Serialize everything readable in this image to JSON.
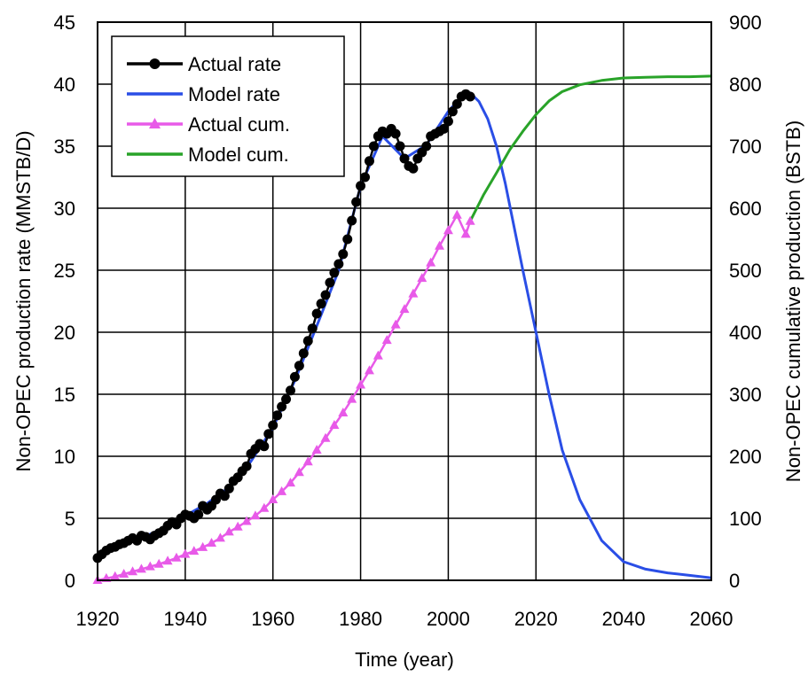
{
  "chart_data": {
    "type": "line",
    "xlabel": "Time (year)",
    "ylabel": "Non-OPEC production rate (MMSTB/D)",
    "y2label": "Non-OPEC cumulative production (BSTB)",
    "xlim": [
      1920,
      2060
    ],
    "ylim": [
      0,
      45
    ],
    "y2lim": [
      0,
      900
    ],
    "xticks": [
      "1920",
      "1940",
      "1960",
      "1980",
      "2000",
      "2020",
      "2040",
      "2060"
    ],
    "yticks": [
      "0",
      "5",
      "10",
      "15",
      "20",
      "25",
      "30",
      "35",
      "40",
      "45"
    ],
    "y2ticks": [
      "0",
      "100",
      "200",
      "300",
      "400",
      "500",
      "600",
      "700",
      "800",
      "900"
    ],
    "grid": true,
    "legend_position": "top-left",
    "legend": [
      "Actual rate",
      "Model rate",
      "Actual cum.",
      "Model cum."
    ],
    "colors": {
      "actual_rate": "#000000",
      "model_rate": "#2a4ee6",
      "actual_cum": "#e85ae8",
      "model_cum": "#29a329"
    },
    "series": [
      {
        "name": "Actual rate",
        "axis": "left",
        "marker": "circle",
        "x": [
          1920,
          1921,
          1922,
          1923,
          1924,
          1925,
          1926,
          1927,
          1928,
          1929,
          1930,
          1931,
          1932,
          1933,
          1934,
          1935,
          1936,
          1937,
          1938,
          1939,
          1940,
          1941,
          1942,
          1943,
          1944,
          1945,
          1946,
          1947,
          1948,
          1949,
          1950,
          1951,
          1952,
          1953,
          1954,
          1955,
          1956,
          1957,
          1958,
          1959,
          1960,
          1961,
          1962,
          1963,
          1964,
          1965,
          1966,
          1967,
          1968,
          1969,
          1970,
          1971,
          1972,
          1973,
          1974,
          1975,
          1976,
          1977,
          1978,
          1979,
          1980,
          1981,
          1982,
          1983,
          1984,
          1985,
          1986,
          1987,
          1988,
          1989,
          1990,
          1991,
          1992,
          1993,
          1994,
          1995,
          1996,
          1997,
          1998,
          1999,
          2000,
          2001,
          2002,
          2003,
          2004,
          2005
        ],
        "y": [
          1.8,
          2.1,
          2.4,
          2.6,
          2.7,
          2.9,
          3.0,
          3.2,
          3.4,
          3.2,
          3.6,
          3.5,
          3.3,
          3.6,
          3.8,
          4.0,
          4.4,
          4.7,
          4.5,
          5.0,
          5.3,
          5.2,
          5.0,
          5.3,
          6.0,
          5.7,
          6.0,
          6.5,
          7.0,
          6.8,
          7.4,
          8.0,
          8.3,
          8.8,
          9.2,
          10.2,
          10.6,
          11.0,
          10.8,
          11.8,
          12.5,
          13.3,
          14.0,
          14.6,
          15.3,
          16.4,
          17.3,
          18.3,
          19.3,
          20.3,
          21.5,
          22.3,
          23.0,
          24.0,
          24.8,
          25.5,
          26.3,
          27.5,
          29.0,
          30.5,
          31.8,
          32.5,
          33.8,
          35.0,
          35.8,
          36.2,
          36.0,
          36.4,
          36.0,
          35.0,
          34.0,
          33.4,
          33.2,
          34.0,
          34.5,
          35.0,
          35.8,
          36.0,
          36.2,
          36.4,
          37.0,
          37.8,
          38.4,
          39.0,
          39.2,
          39.0
        ]
      },
      {
        "name": "Model rate",
        "axis": "left",
        "x": [
          1920,
          1925,
          1930,
          1935,
          1940,
          1945,
          1950,
          1955,
          1960,
          1965,
          1970,
          1975,
          1980,
          1985,
          1990,
          1995,
          2000,
          2003,
          2005,
          2007,
          2009,
          2011,
          2013,
          2015,
          2017,
          2020,
          2023,
          2026,
          2030,
          2035,
          2040,
          2045,
          2050,
          2055,
          2060
        ],
        "y": [
          1.8,
          2.7,
          3.4,
          4.2,
          5.2,
          6.2,
          7.5,
          9.6,
          12.3,
          16.1,
          20.5,
          25.0,
          31.8,
          35.8,
          34.0,
          35.1,
          37.8,
          39.0,
          39.3,
          38.6,
          37.2,
          35.0,
          32.0,
          28.5,
          25.0,
          20.0,
          15.0,
          10.5,
          6.5,
          3.2,
          1.5,
          0.9,
          0.6,
          0.4,
          0.2
        ]
      },
      {
        "name": "Actual cum.",
        "axis": "right",
        "marker": "triangle",
        "x": [
          1920,
          1922,
          1924,
          1926,
          1928,
          1930,
          1932,
          1934,
          1936,
          1938,
          1940,
          1942,
          1944,
          1946,
          1948,
          1950,
          1952,
          1954,
          1956,
          1958,
          1960,
          1962,
          1964,
          1966,
          1968,
          1970,
          1972,
          1974,
          1976,
          1978,
          1980,
          1982,
          1984,
          1986,
          1988,
          1990,
          1992,
          1994,
          1996,
          1998,
          2000,
          2002,
          2004,
          2005
        ],
        "y": [
          0,
          3,
          6,
          10,
          14,
          18,
          22,
          26,
          31,
          36,
          42,
          47,
          53,
          60,
          68,
          78,
          86,
          95,
          104,
          116,
          130,
          143,
          157,
          174,
          191,
          210,
          229,
          250,
          270,
          292,
          315,
          338,
          362,
          387,
          412,
          437,
          462,
          487,
          512,
          539,
          564,
          589,
          558,
          579
        ]
      },
      {
        "name": "Model cum.",
        "axis": "right",
        "x": [
          2005,
          2008,
          2011,
          2014,
          2017,
          2020,
          2023,
          2026,
          2030,
          2035,
          2040,
          2045,
          2050,
          2055,
          2060
        ],
        "y": [
          579,
          621,
          657,
          694,
          724,
          751,
          773,
          788,
          799,
          806,
          810,
          811,
          812,
          812,
          813
        ]
      }
    ]
  }
}
